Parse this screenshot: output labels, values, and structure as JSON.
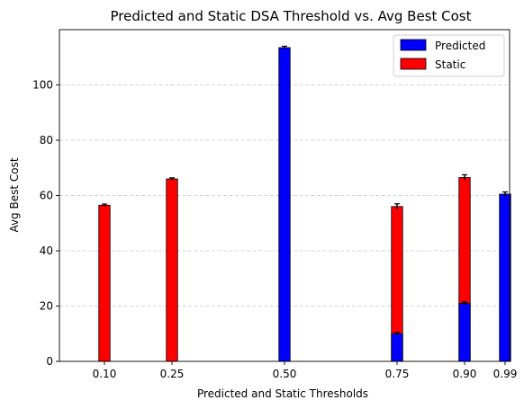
{
  "chart_data": {
    "type": "bar",
    "title": "Predicted and Static DSA Threshold vs. Avg Best Cost",
    "xlabel": "Predicted and Static Thresholds",
    "ylabel": "Avg Best Cost",
    "x_ticks": [
      "0.10",
      "0.25",
      "0.50",
      "0.75",
      "0.90",
      "0.99"
    ],
    "x_tick_values": [
      0.1,
      0.25,
      0.5,
      0.75,
      0.9,
      0.99
    ],
    "xlim": [
      0.0,
      1.0
    ],
    "ylim": [
      0,
      120
    ],
    "y_ticks": [
      0,
      20,
      40,
      60,
      80,
      100
    ],
    "bar_width": 0.025,
    "grid": "y-dashed",
    "legend_position": "top-right",
    "series": [
      {
        "name": "Static",
        "color": "#ff0000",
        "points": [
          {
            "x": 0.1,
            "value": 56.5,
            "error": 0.4
          },
          {
            "x": 0.25,
            "value": 66.0,
            "error": 0.4
          },
          {
            "x": 0.75,
            "value": 56.0,
            "error": 1.0
          },
          {
            "x": 0.9,
            "value": 66.5,
            "error": 1.0
          }
        ]
      },
      {
        "name": "Predicted",
        "color": "#0000ff",
        "points": [
          {
            "x": 0.5,
            "value": 113.5,
            "error": 0.5
          },
          {
            "x": 0.75,
            "value": 10.0,
            "error": 0.5
          },
          {
            "x": 0.9,
            "value": 21.0,
            "error": 0.5
          },
          {
            "x": 0.99,
            "value": 60.5,
            "error": 0.8
          }
        ]
      }
    ],
    "legend_order": [
      "Predicted",
      "Static"
    ]
  }
}
